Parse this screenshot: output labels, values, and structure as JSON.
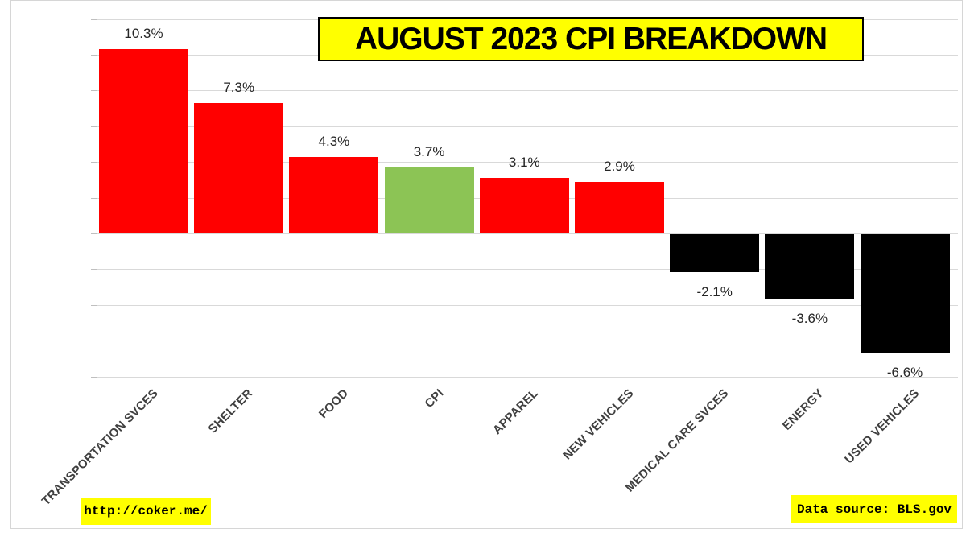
{
  "chart_data": {
    "type": "bar",
    "title": "AUGUST 2023 CPI BREAKDOWN",
    "categories": [
      "TRANSPORTATION SVCES",
      "SHELTER",
      "FOOD",
      "CPI",
      "APPAREL",
      "NEW VEHICLES",
      "MEDICAL CARE SVCES",
      "ENERGY",
      "USED VEHICLES"
    ],
    "values": [
      10.3,
      7.3,
      4.3,
      3.7,
      3.1,
      2.9,
      -2.1,
      -3.6,
      -6.6
    ],
    "value_labels": [
      "10.3%",
      "7.3%",
      "4.3%",
      "3.7%",
      "3.1%",
      "2.9%",
      "-2.1%",
      "-3.6%",
      "-6.6%"
    ],
    "bar_colors": [
      "#ff0000",
      "#ff0000",
      "#ff0000",
      "#8cc455",
      "#ff0000",
      "#ff0000",
      "#000000",
      "#000000",
      "#000000"
    ],
    "xlabel": "",
    "ylabel": "",
    "ylim": [
      -8,
      12
    ],
    "gridline_step": 2,
    "grid": true,
    "legend": "none"
  },
  "colors": {
    "positive_bar": "#ff0000",
    "negative_bar": "#000000",
    "cpi_highlight_bar": "#8cc455",
    "banner_background": "#ffff00",
    "banner_text": "#000000",
    "gridline": "#d9d9d9"
  },
  "footer": {
    "url_label": "http://coker.me/",
    "source_label": "Data source: BLS.gov"
  }
}
